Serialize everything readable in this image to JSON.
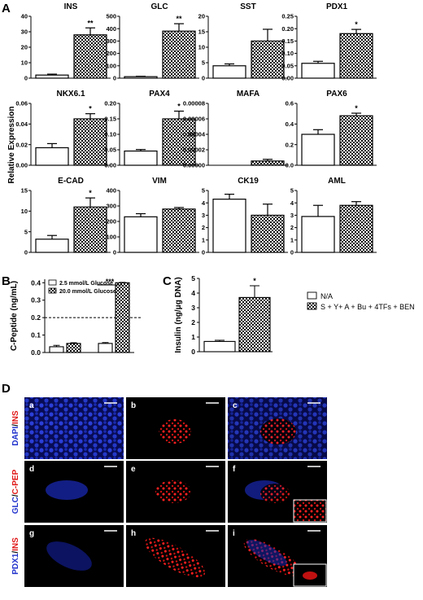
{
  "panels": {
    "A": "A",
    "B": "B",
    "C": "C",
    "D": "D"
  },
  "panel_a": {
    "ylabel": "Relative Expression",
    "charts": [
      {
        "title": "INS",
        "values": [
          2,
          28
        ],
        "errors": [
          0.6,
          4.5
        ],
        "ylim": [
          0,
          40
        ],
        "ticks": [
          "0",
          "10",
          "20",
          "30",
          "40"
        ],
        "star": "**"
      },
      {
        "title": "GLC",
        "values": [
          12,
          380
        ],
        "errors": [
          3,
          60
        ],
        "ylim": [
          0,
          500
        ],
        "ticks": [
          "0",
          "100",
          "200",
          "300",
          "400",
          "500"
        ],
        "star": "**"
      },
      {
        "title": "SST",
        "values": [
          4,
          12
        ],
        "errors": [
          0.6,
          3.8
        ],
        "ylim": [
          0,
          20
        ],
        "ticks": [
          "0",
          "5",
          "10",
          "15",
          "20"
        ],
        "star": ""
      },
      {
        "title": "PDX1",
        "values": [
          0.06,
          0.18
        ],
        "errors": [
          0.008,
          0.017
        ],
        "ylim": [
          0,
          0.25
        ],
        "ticks": [
          "0.00",
          "0.05",
          "0.10",
          "0.15",
          "0.20",
          "0.25"
        ],
        "star": "*"
      },
      {
        "title": "NKX6.1",
        "values": [
          0.017,
          0.045
        ],
        "errors": [
          0.004,
          0.005
        ],
        "ylim": [
          0,
          0.06
        ],
        "ticks": [
          "0.00",
          "0.02",
          "0.04",
          "0.06"
        ],
        "star": "*"
      },
      {
        "title": "PAX4",
        "values": [
          0.046,
          0.15
        ],
        "errors": [
          0.005,
          0.025
        ],
        "ylim": [
          0,
          0.2
        ],
        "ticks": [
          "0.00",
          "0.05",
          "0.10",
          "0.15",
          "0.20"
        ],
        "star": "*"
      },
      {
        "title": "MAFA",
        "values": [
          0,
          5.5e-06
        ],
        "errors": [
          0,
          2.2e-06
        ],
        "ylim": [
          0,
          8e-05
        ],
        "ticks": [
          "0.00000",
          "0.00002",
          "0.00004",
          "0.00006",
          "0.00008"
        ],
        "star": ""
      },
      {
        "title": "PAX6",
        "values": [
          0.3,
          0.48
        ],
        "errors": [
          0.045,
          0.025
        ],
        "ylim": [
          0,
          0.6
        ],
        "ticks": [
          "0.0",
          "0.2",
          "0.4",
          "0.6"
        ],
        "star": "*"
      },
      {
        "title": "E-CAD",
        "values": [
          3.2,
          11
        ],
        "errors": [
          0.9,
          2.2
        ],
        "ylim": [
          0,
          15
        ],
        "ticks": [
          "0",
          "5",
          "10",
          "15"
        ],
        "star": "*"
      },
      {
        "title": "VIM",
        "values": [
          230,
          280
        ],
        "errors": [
          20,
          10
        ],
        "ylim": [
          0,
          400
        ],
        "ticks": [
          "0",
          "100",
          "200",
          "300",
          "400"
        ],
        "star": ""
      },
      {
        "title": "CK19",
        "values": [
          4.3,
          3.0
        ],
        "errors": [
          0.4,
          0.9
        ],
        "ylim": [
          0,
          5
        ],
        "ticks": [
          "0",
          "1",
          "2",
          "3",
          "4",
          "5"
        ],
        "star": ""
      },
      {
        "title": "AML",
        "values": [
          2.9,
          3.8
        ],
        "errors": [
          0.9,
          0.3
        ],
        "ylim": [
          0,
          5
        ],
        "ticks": [
          "0",
          "1",
          "2",
          "3",
          "4",
          "5"
        ],
        "star": ""
      }
    ]
  },
  "panel_b": {
    "ylabel": "C-Peptide (ng/mL)",
    "ticks": [
      "0.0",
      "0.1",
      "0.2",
      "0.3",
      "0.4"
    ],
    "ylim": [
      0,
      0.42
    ],
    "legend": [
      "2.5 mmol/L Glucose",
      "20.0 mmol/L Glucose"
    ],
    "groups": [
      {
        "values": [
          0.033,
          0.052
        ],
        "errors": [
          0.008,
          0.004
        ]
      },
      {
        "values": [
          0.052,
          0.4
        ],
        "errors": [
          0.005,
          0.002
        ]
      }
    ],
    "dashed_line": 0.2,
    "star": "***"
  },
  "panel_c": {
    "ylabel": "Insulin (ng/μg DNA)",
    "ticks": [
      "0",
      "1",
      "2",
      "3",
      "4",
      "5"
    ],
    "ylim": [
      0,
      5
    ],
    "values": [
      0.7,
      3.7
    ],
    "errors": [
      0.08,
      0.8
    ],
    "star": "*",
    "legend": [
      "N/A",
      "S + Y+ A + Bu + 4TFs + BEN"
    ]
  },
  "panel_d": {
    "row_labels": [
      {
        "a": "DAPI",
        "sep": "/",
        "b": "INS"
      },
      {
        "a": "GLC",
        "sep": "/",
        "b": "C-PEP"
      },
      {
        "a": "PDX1",
        "sep": "/",
        "b": "INS"
      }
    ],
    "tiles": [
      "a",
      "b",
      "c",
      "d",
      "e",
      "f",
      "g",
      "h",
      "i"
    ]
  },
  "colors": {
    "blue": "#2233cc",
    "red": "#e01818",
    "bar_white": "#ffffff",
    "bar_hatch": "#000000"
  }
}
